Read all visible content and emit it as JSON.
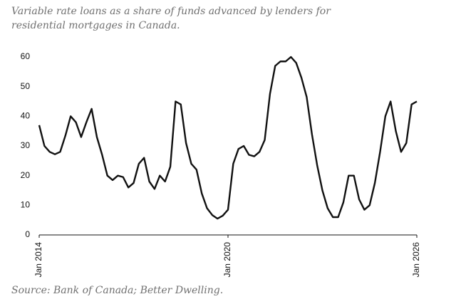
{
  "chart_data": {
    "type": "line",
    "title": "Variable rate loans as a share of funds advanced by lenders for residential mortgages in Canada.",
    "source": "Source: Bank of Canada; Better Dwelling.",
    "x": [
      "2014-01",
      "2014-03",
      "2014-05",
      "2014-07",
      "2014-09",
      "2014-11",
      "2015-01",
      "2015-03",
      "2015-05",
      "2015-07",
      "2015-09",
      "2015-11",
      "2016-01",
      "2016-03",
      "2016-05",
      "2016-07",
      "2016-09",
      "2016-11",
      "2017-01",
      "2017-03",
      "2017-05",
      "2017-07",
      "2017-09",
      "2017-11",
      "2018-01",
      "2018-03",
      "2018-05",
      "2018-07",
      "2018-09",
      "2018-11",
      "2019-01",
      "2019-03",
      "2019-05",
      "2019-07",
      "2019-09",
      "2019-11",
      "2020-01",
      "2020-03",
      "2020-05",
      "2020-07",
      "2020-09",
      "2020-11",
      "2021-01",
      "2021-03",
      "2021-05",
      "2021-07",
      "2021-09",
      "2021-11",
      "2022-01",
      "2022-03",
      "2022-05",
      "2022-07",
      "2022-09",
      "2022-11",
      "2023-01",
      "2023-03",
      "2023-05",
      "2023-07",
      "2023-09",
      "2023-11",
      "2024-01",
      "2024-03",
      "2024-05",
      "2024-07",
      "2024-09",
      "2024-11",
      "2025-01",
      "2025-03",
      "2025-05",
      "2025-07",
      "2025-09",
      "2025-11",
      "2026-01"
    ],
    "series": [
      {
        "color": "#111111",
        "values": [
          37,
          30,
          28,
          27.2,
          28,
          33.5,
          40,
          38,
          33,
          38,
          42.5,
          33,
          27,
          20,
          18.5,
          20,
          19.5,
          16,
          17.5,
          24,
          26,
          18,
          15.5,
          20,
          18,
          23,
          45,
          44,
          31,
          24,
          22,
          14,
          9,
          6.7,
          5.5,
          6.5,
          8.5,
          24,
          29,
          30,
          27,
          26.5,
          28,
          32,
          47.5,
          57,
          58.5,
          58.5,
          60,
          58,
          53,
          46.5,
          34,
          23.5,
          15,
          9,
          6,
          6,
          11,
          20,
          20,
          12,
          8.5,
          10,
          17.5,
          28,
          40,
          45,
          35,
          28,
          31,
          44,
          45
        ]
      }
    ],
    "xlim": [
      "2014-01",
      "2026-01"
    ],
    "xticks": [
      {
        "value": "2014-01",
        "label": "Jan 2014"
      },
      {
        "value": "2020-01",
        "label": "Jan 2020"
      },
      {
        "value": "2026-01",
        "label": "Jan 2026"
      }
    ],
    "ylim": [
      0,
      60
    ],
    "yticks": [
      0,
      10,
      20,
      30,
      40,
      50,
      60
    ],
    "grid": false
  }
}
